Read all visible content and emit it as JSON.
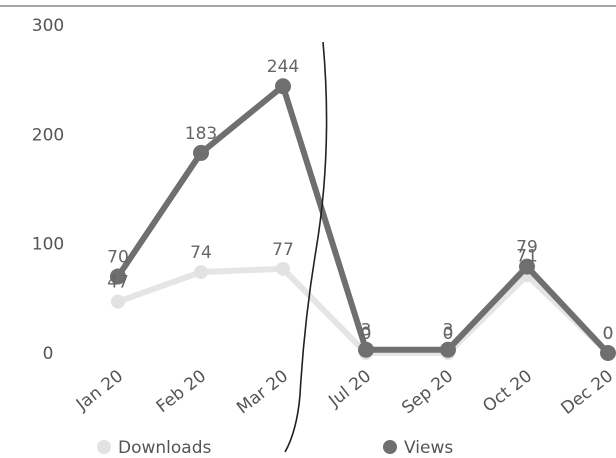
{
  "chart_data": {
    "type": "line",
    "categories": [
      "Jan 20",
      "Feb 20",
      "Mar 20",
      "Jul 20",
      "Sep 20",
      "Oct 20",
      "Dec 20"
    ],
    "series": [
      {
        "name": "Downloads",
        "color": "#e2e2e2",
        "values": [
          47,
          74,
          77,
          0,
          0,
          71,
          0
        ]
      },
      {
        "name": "Views",
        "color": "#6f6f6f",
        "values": [
          70,
          183,
          244,
          3,
          3,
          79,
          0
        ]
      }
    ],
    "y_ticks": [
      "0",
      "100",
      "200",
      "300"
    ],
    "ylim": [
      0,
      300
    ],
    "grid": false,
    "legend": "bottom",
    "title": "",
    "xlabel": "",
    "ylabel": ""
  }
}
